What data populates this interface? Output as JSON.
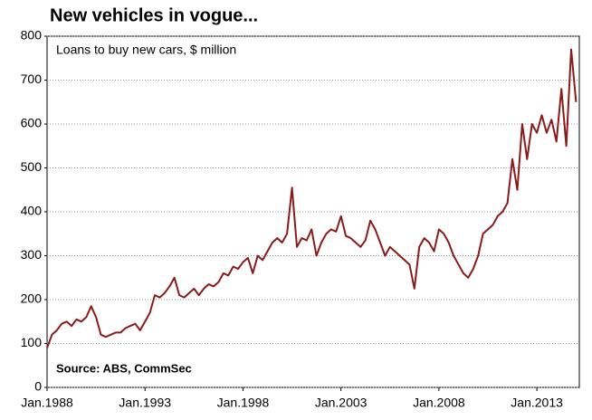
{
  "chart_data": {
    "type": "line",
    "title": "New vehicles in vogue...",
    "subtitle": "Loans to buy new cars, $ million",
    "source": "Source: ABS, CommSec",
    "x": [
      "1988-01",
      "1988-04",
      "1988-07",
      "1988-10",
      "1989-01",
      "1989-04",
      "1989-07",
      "1989-10",
      "1990-01",
      "1990-04",
      "1990-07",
      "1990-10",
      "1991-01",
      "1991-04",
      "1991-07",
      "1991-10",
      "1992-01",
      "1992-04",
      "1992-07",
      "1992-10",
      "1993-01",
      "1993-04",
      "1993-07",
      "1993-10",
      "1994-01",
      "1994-04",
      "1994-07",
      "1994-10",
      "1995-01",
      "1995-04",
      "1995-07",
      "1995-10",
      "1996-01",
      "1996-04",
      "1996-07",
      "1996-10",
      "1997-01",
      "1997-04",
      "1997-07",
      "1997-10",
      "1998-01",
      "1998-04",
      "1998-07",
      "1998-10",
      "1999-01",
      "1999-04",
      "1999-07",
      "1999-10",
      "2000-01",
      "2000-04",
      "2000-07",
      "2000-10",
      "2001-01",
      "2001-04",
      "2001-07",
      "2001-10",
      "2002-01",
      "2002-04",
      "2002-07",
      "2002-10",
      "2003-01",
      "2003-04",
      "2003-07",
      "2003-10",
      "2004-01",
      "2004-04",
      "2004-07",
      "2004-10",
      "2005-01",
      "2005-04",
      "2005-07",
      "2005-10",
      "2006-01",
      "2006-04",
      "2006-07",
      "2006-10",
      "2007-01",
      "2007-04",
      "2007-07",
      "2007-10",
      "2008-01",
      "2008-04",
      "2008-07",
      "2008-10",
      "2009-01",
      "2009-04",
      "2009-07",
      "2009-10",
      "2010-01",
      "2010-04",
      "2010-07",
      "2010-10",
      "2011-01",
      "2011-04",
      "2011-07",
      "2011-10",
      "2012-01",
      "2012-04",
      "2012-07",
      "2012-10",
      "2013-01",
      "2013-04",
      "2013-07",
      "2013-10",
      "2014-01",
      "2014-04",
      "2014-07",
      "2014-10",
      "2015-01"
    ],
    "series": [
      {
        "name": "Loans to buy new cars",
        "color": "#8b1a1a",
        "values": [
          90,
          120,
          130,
          145,
          150,
          140,
          155,
          150,
          160,
          185,
          160,
          120,
          115,
          120,
          125,
          125,
          135,
          140,
          145,
          130,
          150,
          170,
          210,
          205,
          215,
          230,
          250,
          210,
          205,
          215,
          225,
          210,
          225,
          235,
          230,
          240,
          260,
          255,
          275,
          270,
          285,
          295,
          260,
          300,
          290,
          310,
          330,
          340,
          330,
          350,
          455,
          320,
          340,
          335,
          360,
          300,
          330,
          350,
          360,
          355,
          390,
          345,
          340,
          330,
          320,
          335,
          380,
          360,
          330,
          300,
          320,
          310,
          300,
          290,
          280,
          225,
          320,
          340,
          330,
          310,
          360,
          350,
          330,
          300,
          280,
          260,
          250,
          270,
          300,
          350,
          360,
          370,
          390,
          400,
          420,
          520,
          450,
          600,
          520,
          600,
          580,
          620,
          580,
          610,
          560,
          680,
          550,
          770,
          650
        ]
      }
    ],
    "xlim": [
      "1988-01",
      "2015-03"
    ],
    "xticks": [
      {
        "value": "1988-01",
        "label": "Jan.1988"
      },
      {
        "value": "1993-01",
        "label": "Jan.1993"
      },
      {
        "value": "1998-01",
        "label": "Jan.1998"
      },
      {
        "value": "2003-01",
        "label": "Jan.2003"
      },
      {
        "value": "2008-01",
        "label": "Jan.2008"
      },
      {
        "value": "2013-01",
        "label": "Jan.2013"
      }
    ],
    "ylim": [
      0,
      800
    ],
    "yticks": [
      0,
      100,
      200,
      300,
      400,
      500,
      600,
      700,
      800
    ],
    "grid": true
  }
}
